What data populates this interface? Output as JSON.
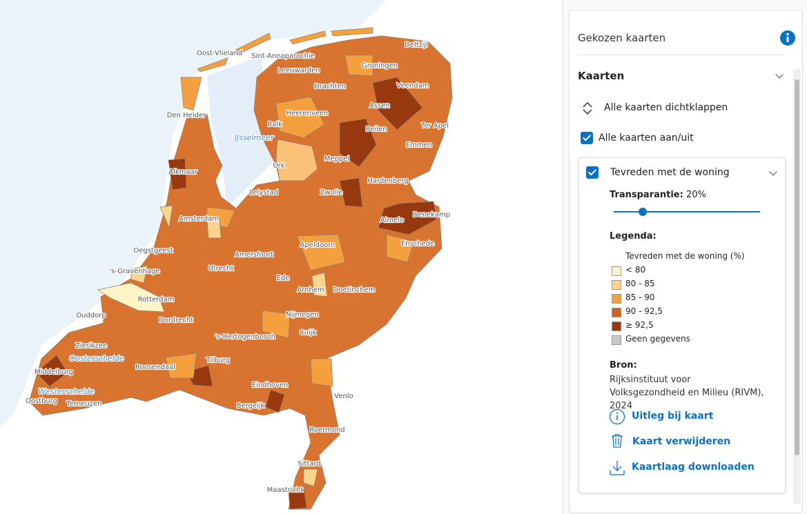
{
  "map": {
    "labels": [
      "Oost-Vlieland",
      "Sint-Annaparochie",
      "Delfzijl",
      "Leeuwarden",
      "Groningen",
      "Drachten",
      "Veendam",
      "Den Helder",
      "Assen",
      "Heerenveen",
      "Balk",
      "Beilen",
      "Ter Apel",
      "Emmen",
      "Urk",
      "Meppel",
      "Alkmaar",
      "Hardenberg",
      "Lelystad",
      "Zwolle",
      "Amsterdam",
      "Almelo",
      "Denekamp",
      "Enschede",
      "Apeldoorn",
      "Oegstgeest",
      "Amersfoort",
      "'s-Gravenhage",
      "Utrecht",
      "Ede",
      "Rotterdam",
      "Arnhem",
      "Doetinchem",
      "Ouddorp",
      "Dordrecht",
      "Nijmegen",
      "Zierikzee",
      "'s-Hertogenbosch",
      "Cuijk",
      "Middelburg",
      "Tilburg",
      "Roosendaal",
      "Eindhoven",
      "Venlo",
      "Oostburg",
      "Terneuzen",
      "Bergeijk",
      "Roermond",
      "Sittard",
      "Maastricht"
    ],
    "water_labels": [
      "IJsselmeer",
      "Oosterschelde",
      "Westerschelde"
    ]
  },
  "panel": {
    "title": "Gekozen kaarten",
    "section": "Kaarten",
    "collapse_all": "Alle kaarten dichtklappen",
    "toggle_all": "Alle kaarten aan/uit",
    "layer": {
      "name": "Tevreden met de woning",
      "transparency_label": "Transparantie:",
      "transparency": {
        "value": 20,
        "label": "20%"
      },
      "legend_title": "Legenda:",
      "legend_subtitle": "Tevreden met de woning (%)",
      "legend": [
        {
          "label": "< 80",
          "color": "#fdf5c8"
        },
        {
          "label": "80 - 85",
          "color": "#fdd48d"
        },
        {
          "label": "85 - 90",
          "color": "#f4a03f"
        },
        {
          "label": "90 - 92,5",
          "color": "#d2631f"
        },
        {
          "label": "≥ 92,5",
          "color": "#98380f"
        },
        {
          "label": "Geen gegevens",
          "color": "#c8c8c8"
        }
      ],
      "source_title": "Bron:",
      "source": "Rijksinstituut voor Volksgezondheid en Milieu (RIVM), 2024",
      "actions": [
        "Uitleg bij kaart",
        "Kaart verwijderen",
        "Kaartlaag downloaden"
      ]
    }
  }
}
